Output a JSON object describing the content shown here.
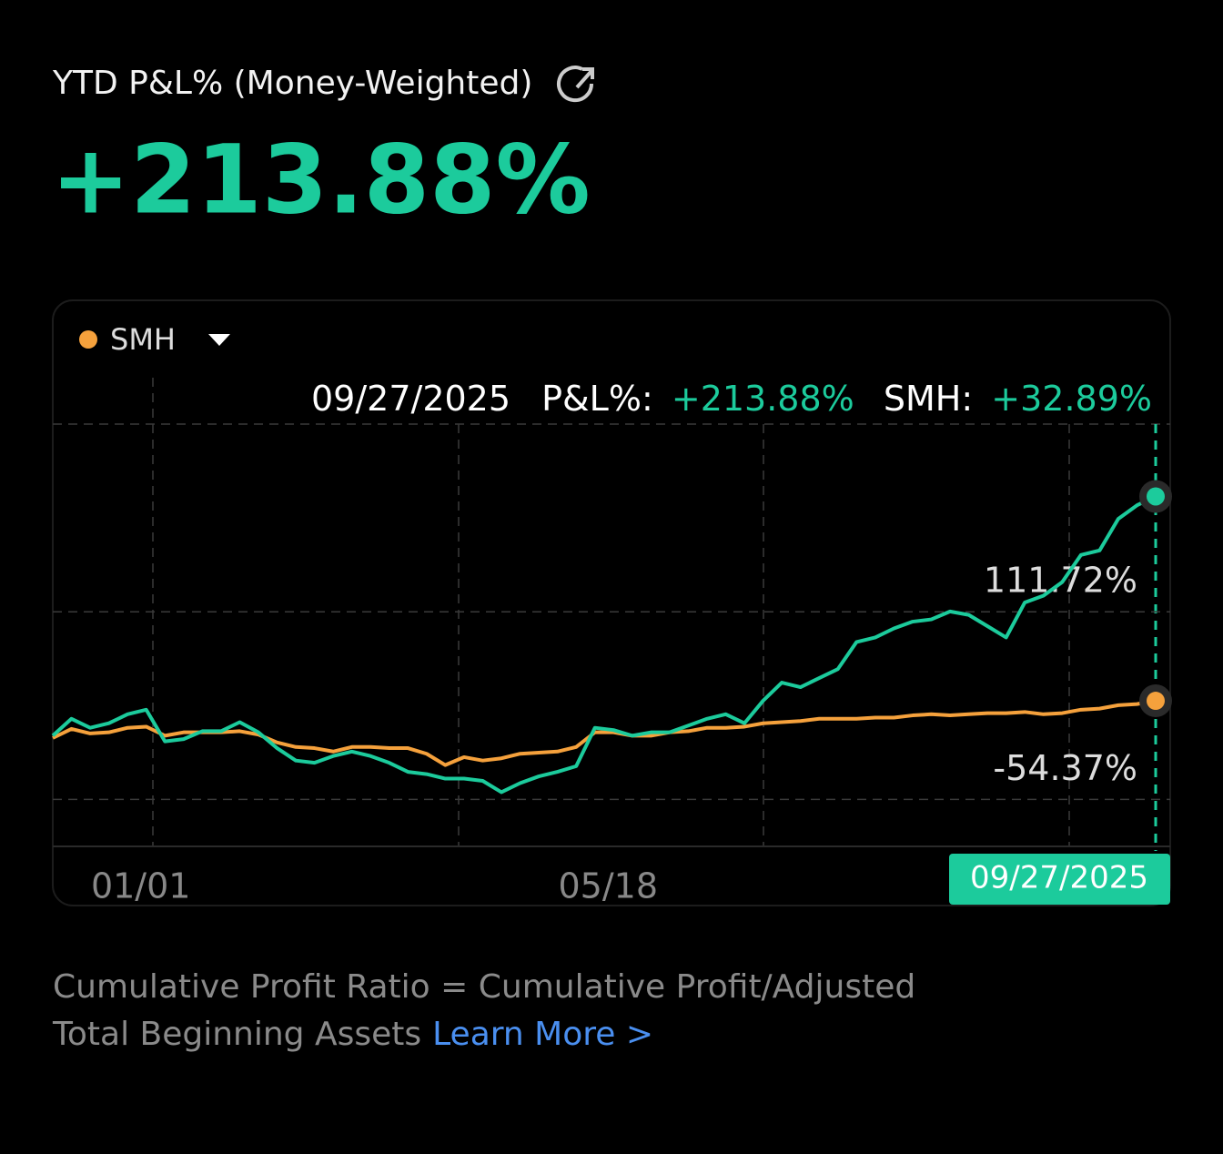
{
  "header": {
    "title": "YTD P&L% (Money-Weighted)",
    "value": "+213.88%"
  },
  "chart_data": {
    "type": "line",
    "legend": "SMH",
    "tooltip": {
      "date": "09/27/2025",
      "pl_label": "P&L%:",
      "pl_value": "+213.88%",
      "smh_label": "SMH:",
      "smh_value": "+32.89%"
    },
    "categories": [
      null,
      null,
      null,
      null,
      null,
      "01/01",
      null,
      null,
      null,
      null,
      null,
      null,
      null,
      null,
      null,
      null,
      null,
      null,
      null,
      null,
      null,
      null,
      null,
      null,
      null,
      null,
      null,
      null,
      null,
      null,
      "05/18",
      null,
      null,
      null,
      null,
      null,
      null,
      null,
      null,
      null,
      null,
      null,
      null,
      null,
      null,
      null,
      null,
      null,
      null,
      null,
      null,
      null,
      null,
      null,
      null,
      null,
      null,
      null,
      null,
      "09/27/2025"
    ],
    "series": [
      {
        "color": "#1ccb9c",
        "values": [
          2,
          17,
          9,
          13,
          21,
          25,
          -3,
          -1,
          6,
          6,
          14,
          5,
          -9,
          -20,
          -22,
          -16,
          -12,
          -16,
          -22,
          -30,
          -32,
          -36,
          -36,
          -38,
          -48,
          -40,
          -34,
          -30,
          -25,
          9,
          7,
          2,
          5,
          5,
          11,
          17,
          21,
          13,
          33,
          49,
          45,
          53,
          61,
          85,
          89,
          97,
          103,
          105,
          112,
          109,
          99,
          89,
          120,
          126,
          138,
          162,
          166,
          194,
          206,
          213.88
        ]
      },
      {
        "name": "SMH",
        "color": "#f5a13c",
        "values": [
          0,
          8,
          4,
          5,
          9,
          10,
          2,
          5,
          5,
          5,
          6,
          3,
          -4,
          -8,
          -9,
          -12,
          -8,
          -8,
          -9,
          -9,
          -14,
          -24,
          -17,
          -20,
          -18,
          -14,
          -13,
          -12,
          -8,
          5,
          5,
          2,
          2,
          5,
          6,
          9,
          9,
          10,
          13,
          14,
          15,
          17,
          17,
          17,
          18,
          18,
          20,
          21,
          20,
          21,
          22,
          22,
          23,
          21,
          22,
          25,
          26,
          29,
          30,
          32.89
        ]
      }
    ],
    "ylim": [
      -96,
      319
    ],
    "yticks": [
      {
        "value": 111.72,
        "label": "111.72%"
      },
      {
        "value": -54.37,
        "label": "-54.37%"
      }
    ]
  },
  "footer": {
    "note": "Cumulative Profit Ratio = Cumulative Profit/Adjusted Total Beginning Assets",
    "link": "Learn More >"
  }
}
